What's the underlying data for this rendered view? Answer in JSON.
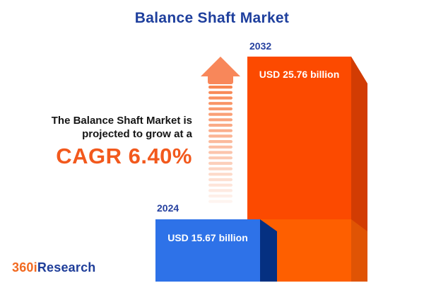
{
  "header": {
    "title": "Balance Shaft Market"
  },
  "description": {
    "line1": "The Balance Shaft Market is",
    "line2": "projected to grow at a",
    "cagr": "CAGR 6.40%"
  },
  "chart_data": {
    "type": "bar",
    "title": "Balance Shaft Market",
    "categories": [
      "2024",
      "2032"
    ],
    "values": [
      15.67,
      25.76
    ],
    "unit": "USD billion",
    "value_labels": [
      "USD 15.67 billion",
      "USD 25.76 billion"
    ],
    "cagr_percent": 6.4,
    "orientation": "vertical",
    "style": "3d-bars",
    "value_label_position": "inside-top",
    "category_label_position": "above-bar",
    "grid": false,
    "legend": false,
    "bar_front_colors": [
      "#2E72E8",
      "#FC4A00"
    ],
    "bar_side_colors": [
      "#053081",
      "#D23C03"
    ],
    "bar_2032_lower_front": "#FE5F00",
    "bar_2032_lower_side": "#E05404"
  },
  "icons": {
    "growth_arrow": "growth-arrow-up-icon"
  },
  "logo": {
    "part1": "360i",
    "part2": "Research"
  },
  "colors": {
    "background": "#FFFFFF",
    "title_text": "#1E3F9D",
    "year_label_text": "#26419F",
    "description_text": "#151515",
    "cagr_text": "#F2591D",
    "value_text": "#FFFFFF",
    "arrow_head": "#F8875A",
    "arrow_stripe": "#F8814B",
    "logo_orange": "#F26A21",
    "logo_blue": "#1E3D99"
  }
}
